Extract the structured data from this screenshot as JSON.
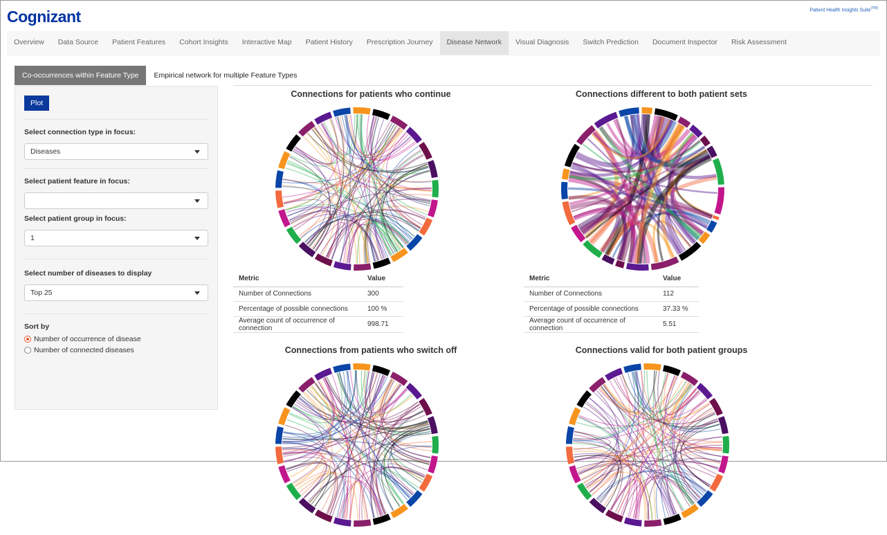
{
  "header": {
    "logo": "Cognizant",
    "suite": "Patient Health Insights Suite",
    "suite_mark": "(TM)"
  },
  "nav": [
    "Overview",
    "Data Source",
    "Patient Features",
    "Cohort Insights",
    "Interactive Map",
    "Patient History",
    "Prescription Journey",
    "Disease Network",
    "Visual Diagnosis",
    "Switch Prediction",
    "Document Inspector",
    "Risk Assessment"
  ],
  "nav_active": "Disease Network",
  "subtabs": [
    "Co-occurrences within Feature Type",
    "Empirical network for multiple Feature Types"
  ],
  "panel": {
    "plot_label": "Plot",
    "connection_label": "Select connection type in focus:",
    "connection_value": "Diseases",
    "feature_label": "Select patient feature in focus:",
    "feature_value": "",
    "group_label": "Select patient group in focus:",
    "group_value": "1",
    "num_label": "Select number of diseases to display",
    "num_value": "Top 25",
    "sort_label": "Sort by",
    "sort_options": [
      "Number of occurrence of disease",
      "Number of connected diseases"
    ],
    "sort_selected": 0
  },
  "charts": [
    {
      "title": "Connections for patients who continue",
      "table": {
        "headers": [
          "Metric",
          "Value"
        ],
        "rows": [
          [
            "Number of Connections",
            "300"
          ],
          [
            "Percentage of possible connections",
            "100 %"
          ],
          [
            "Average count of occurrence of connection",
            "998.71"
          ]
        ]
      }
    },
    {
      "title": "Connections different to both patient sets",
      "table": {
        "headers": [
          "Metric",
          "Value"
        ],
        "rows": [
          [
            "Number of Connections",
            "112"
          ],
          [
            "Percentage of possible connections",
            "37.33 %"
          ],
          [
            "Average count of occurrence of connection",
            "5.51"
          ]
        ]
      }
    },
    {
      "title": "Connections from patients who switch off"
    },
    {
      "title": "Connections valid for both patient groups"
    }
  ],
  "colors": {
    "palette": [
      "#0a45a8",
      "#1fae4b",
      "#5a1990",
      "#f7941d",
      "#c2168c",
      "#6d0f4b",
      "#000000",
      "#f26a3d",
      "#4b1061",
      "#8a1f6b"
    ],
    "accent": "#0a3a9c"
  }
}
